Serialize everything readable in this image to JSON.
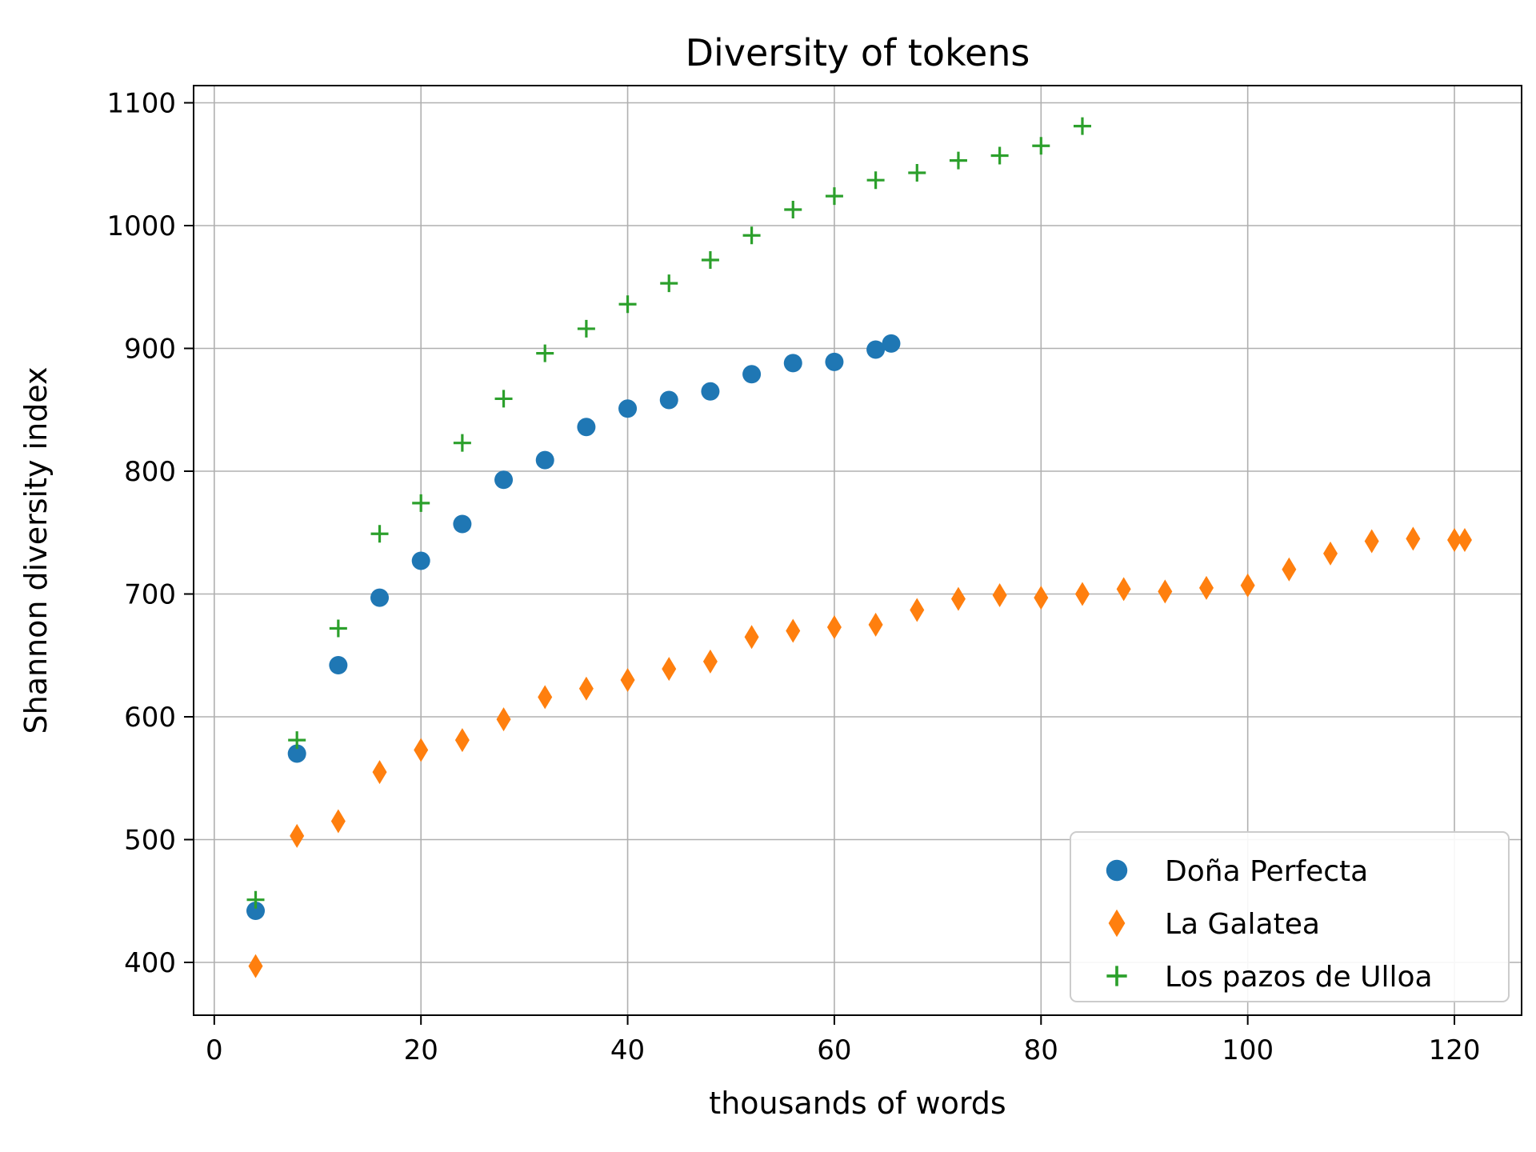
{
  "chart_data": {
    "type": "scatter",
    "title": "Diversity of tokens",
    "xlabel": "thousands of words",
    "ylabel": "Shannon diversity index",
    "xlim": [
      -2,
      126.5
    ],
    "ylim": [
      357,
      1114
    ],
    "x_ticks": [
      0,
      20,
      40,
      60,
      80,
      100,
      120
    ],
    "y_ticks": [
      400,
      500,
      600,
      700,
      800,
      900,
      1000,
      1100
    ],
    "grid": true,
    "grid_color": "#b0b0b0",
    "legend_position": "lower right",
    "series": [
      {
        "name": "Doña Perfecta",
        "marker": "circle",
        "color": "#1f77b4",
        "x": [
          4,
          8,
          12,
          16,
          20,
          24,
          28,
          32,
          36,
          40,
          44,
          48,
          52,
          56,
          60,
          64,
          65.5
        ],
        "y": [
          442,
          570,
          642,
          697,
          727,
          757,
          793,
          809,
          836,
          851,
          858,
          865,
          879,
          888,
          889,
          899,
          904
        ]
      },
      {
        "name": "La Galatea",
        "marker": "thin_diamond",
        "color": "#ff7f0e",
        "x": [
          4,
          8,
          12,
          16,
          20,
          24,
          28,
          32,
          36,
          40,
          44,
          48,
          52,
          56,
          60,
          64,
          68,
          72,
          76,
          80,
          84,
          88,
          92,
          96,
          100,
          104,
          108,
          112,
          116,
          120,
          121
        ],
        "y": [
          397,
          503,
          515,
          555,
          573,
          581,
          598,
          616,
          623,
          630,
          639,
          645,
          665,
          670,
          673,
          675,
          687,
          696,
          699,
          697,
          700,
          704,
          702,
          705,
          707,
          720,
          733,
          743,
          745,
          744,
          744
        ]
      },
      {
        "name": "Los pazos de Ulloa",
        "marker": "plus",
        "color": "#2ca02c",
        "x": [
          4,
          8,
          12,
          16,
          20,
          24,
          28,
          32,
          36,
          40,
          44,
          48,
          52,
          56,
          60,
          64,
          68,
          72,
          76,
          80,
          84
        ],
        "y": [
          451,
          581,
          672,
          749,
          774,
          823,
          859,
          896,
          916,
          936,
          953,
          972,
          992,
          1013,
          1024,
          1037,
          1043,
          1053,
          1057,
          1065,
          1081
        ]
      }
    ]
  }
}
